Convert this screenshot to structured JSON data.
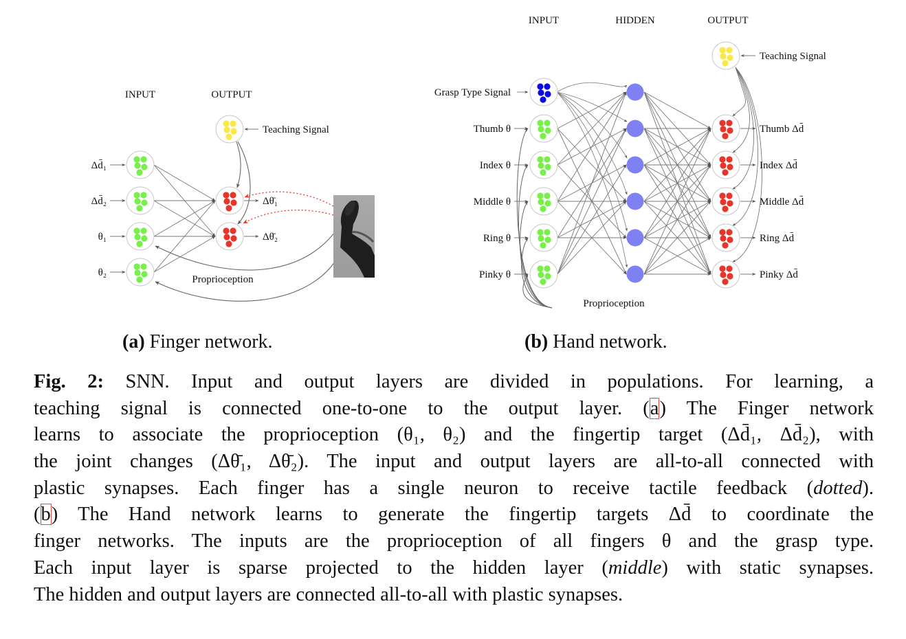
{
  "finger_network": {
    "headers": {
      "input": "INPUT",
      "output": "OUTPUT"
    },
    "inputs": [
      "Δd̄₁",
      "Δd̄₂",
      "θ₁",
      "θ₂"
    ],
    "outputs": [
      "Δθ̄₁",
      "Δθ̄₂"
    ],
    "teaching_signal": "Teaching Signal",
    "proprioception": "Proprioception",
    "colors": {
      "input": "#77f04a",
      "output": "#e8352a",
      "teaching": "#f8e946",
      "tactile": "#e8352a"
    }
  },
  "hand_network": {
    "headers": {
      "input": "INPUT",
      "hidden": "HIDDEN",
      "output": "OUTPUT"
    },
    "grasp_signal": "Grasp Type Signal",
    "inputs": [
      "Thumb θ",
      "Index θ",
      "Middle θ",
      "Ring θ",
      "Pinky θ"
    ],
    "outputs": [
      "Thumb Δd̄",
      "Index Δd̄",
      "Middle Δd̄",
      "Ring Δd̄",
      "Pinky Δd̄"
    ],
    "teaching_signal": "Teaching Signal",
    "proprioception": "Proprioception",
    "colors": {
      "grasp": "#0a0ae6",
      "input": "#77f04a",
      "hidden": "#7f80f2",
      "output": "#e8352a",
      "teaching": "#f8e946"
    }
  },
  "subcaptions": {
    "a": {
      "tag": "(a)",
      "text": "Finger network."
    },
    "b": {
      "tag": "(b)",
      "text": "Hand network."
    }
  },
  "caption": {
    "lines": [
      [
        {
          "s": "b",
          "t": "Fig. 2:"
        },
        {
          "s": "n",
          "t": " SNN. Input and output layers are divided in populations. For learning, a"
        }
      ],
      [
        {
          "s": "n",
          "t": "teaching signal is connected one-to-one to the output layer. ("
        },
        {
          "s": "box",
          "t": "a"
        },
        {
          "s": "n",
          "t": ") The Finger network"
        }
      ],
      [
        {
          "s": "n",
          "t": "learns to associate the proprioception (θ₁, θ₂) and the fingertip target (Δd̄₁, Δd̄₂), with"
        }
      ],
      [
        {
          "s": "n",
          "t": "the joint changes (Δθ̄₁, Δθ̄₂). The input and output layers are all-to-all connected with"
        }
      ],
      [
        {
          "s": "n",
          "t": "plastic synapses. Each finger has a single neuron to receive tactile feedback ("
        },
        {
          "s": "i",
          "t": "dotted"
        },
        {
          "s": "n",
          "t": ")."
        }
      ],
      [
        {
          "s": "n",
          "t": "("
        },
        {
          "s": "box",
          "t": "b"
        },
        {
          "s": "n",
          "t": ") The Hand network learns to generate the fingertip targets Δd̄ to coordinate the"
        }
      ],
      [
        {
          "s": "n",
          "t": "finger networks. The inputs are the proprioception of all fingers θ and the grasp type."
        }
      ],
      [
        {
          "s": "n",
          "t": "Each input layer is sparse projected to the hidden layer ("
        },
        {
          "s": "i",
          "t": "middle"
        },
        {
          "s": "n",
          "t": ") with static synapses."
        }
      ],
      [
        {
          "s": "n",
          "t": "The hidden and output layers are connected all-to-all with plastic synapses."
        }
      ]
    ]
  }
}
